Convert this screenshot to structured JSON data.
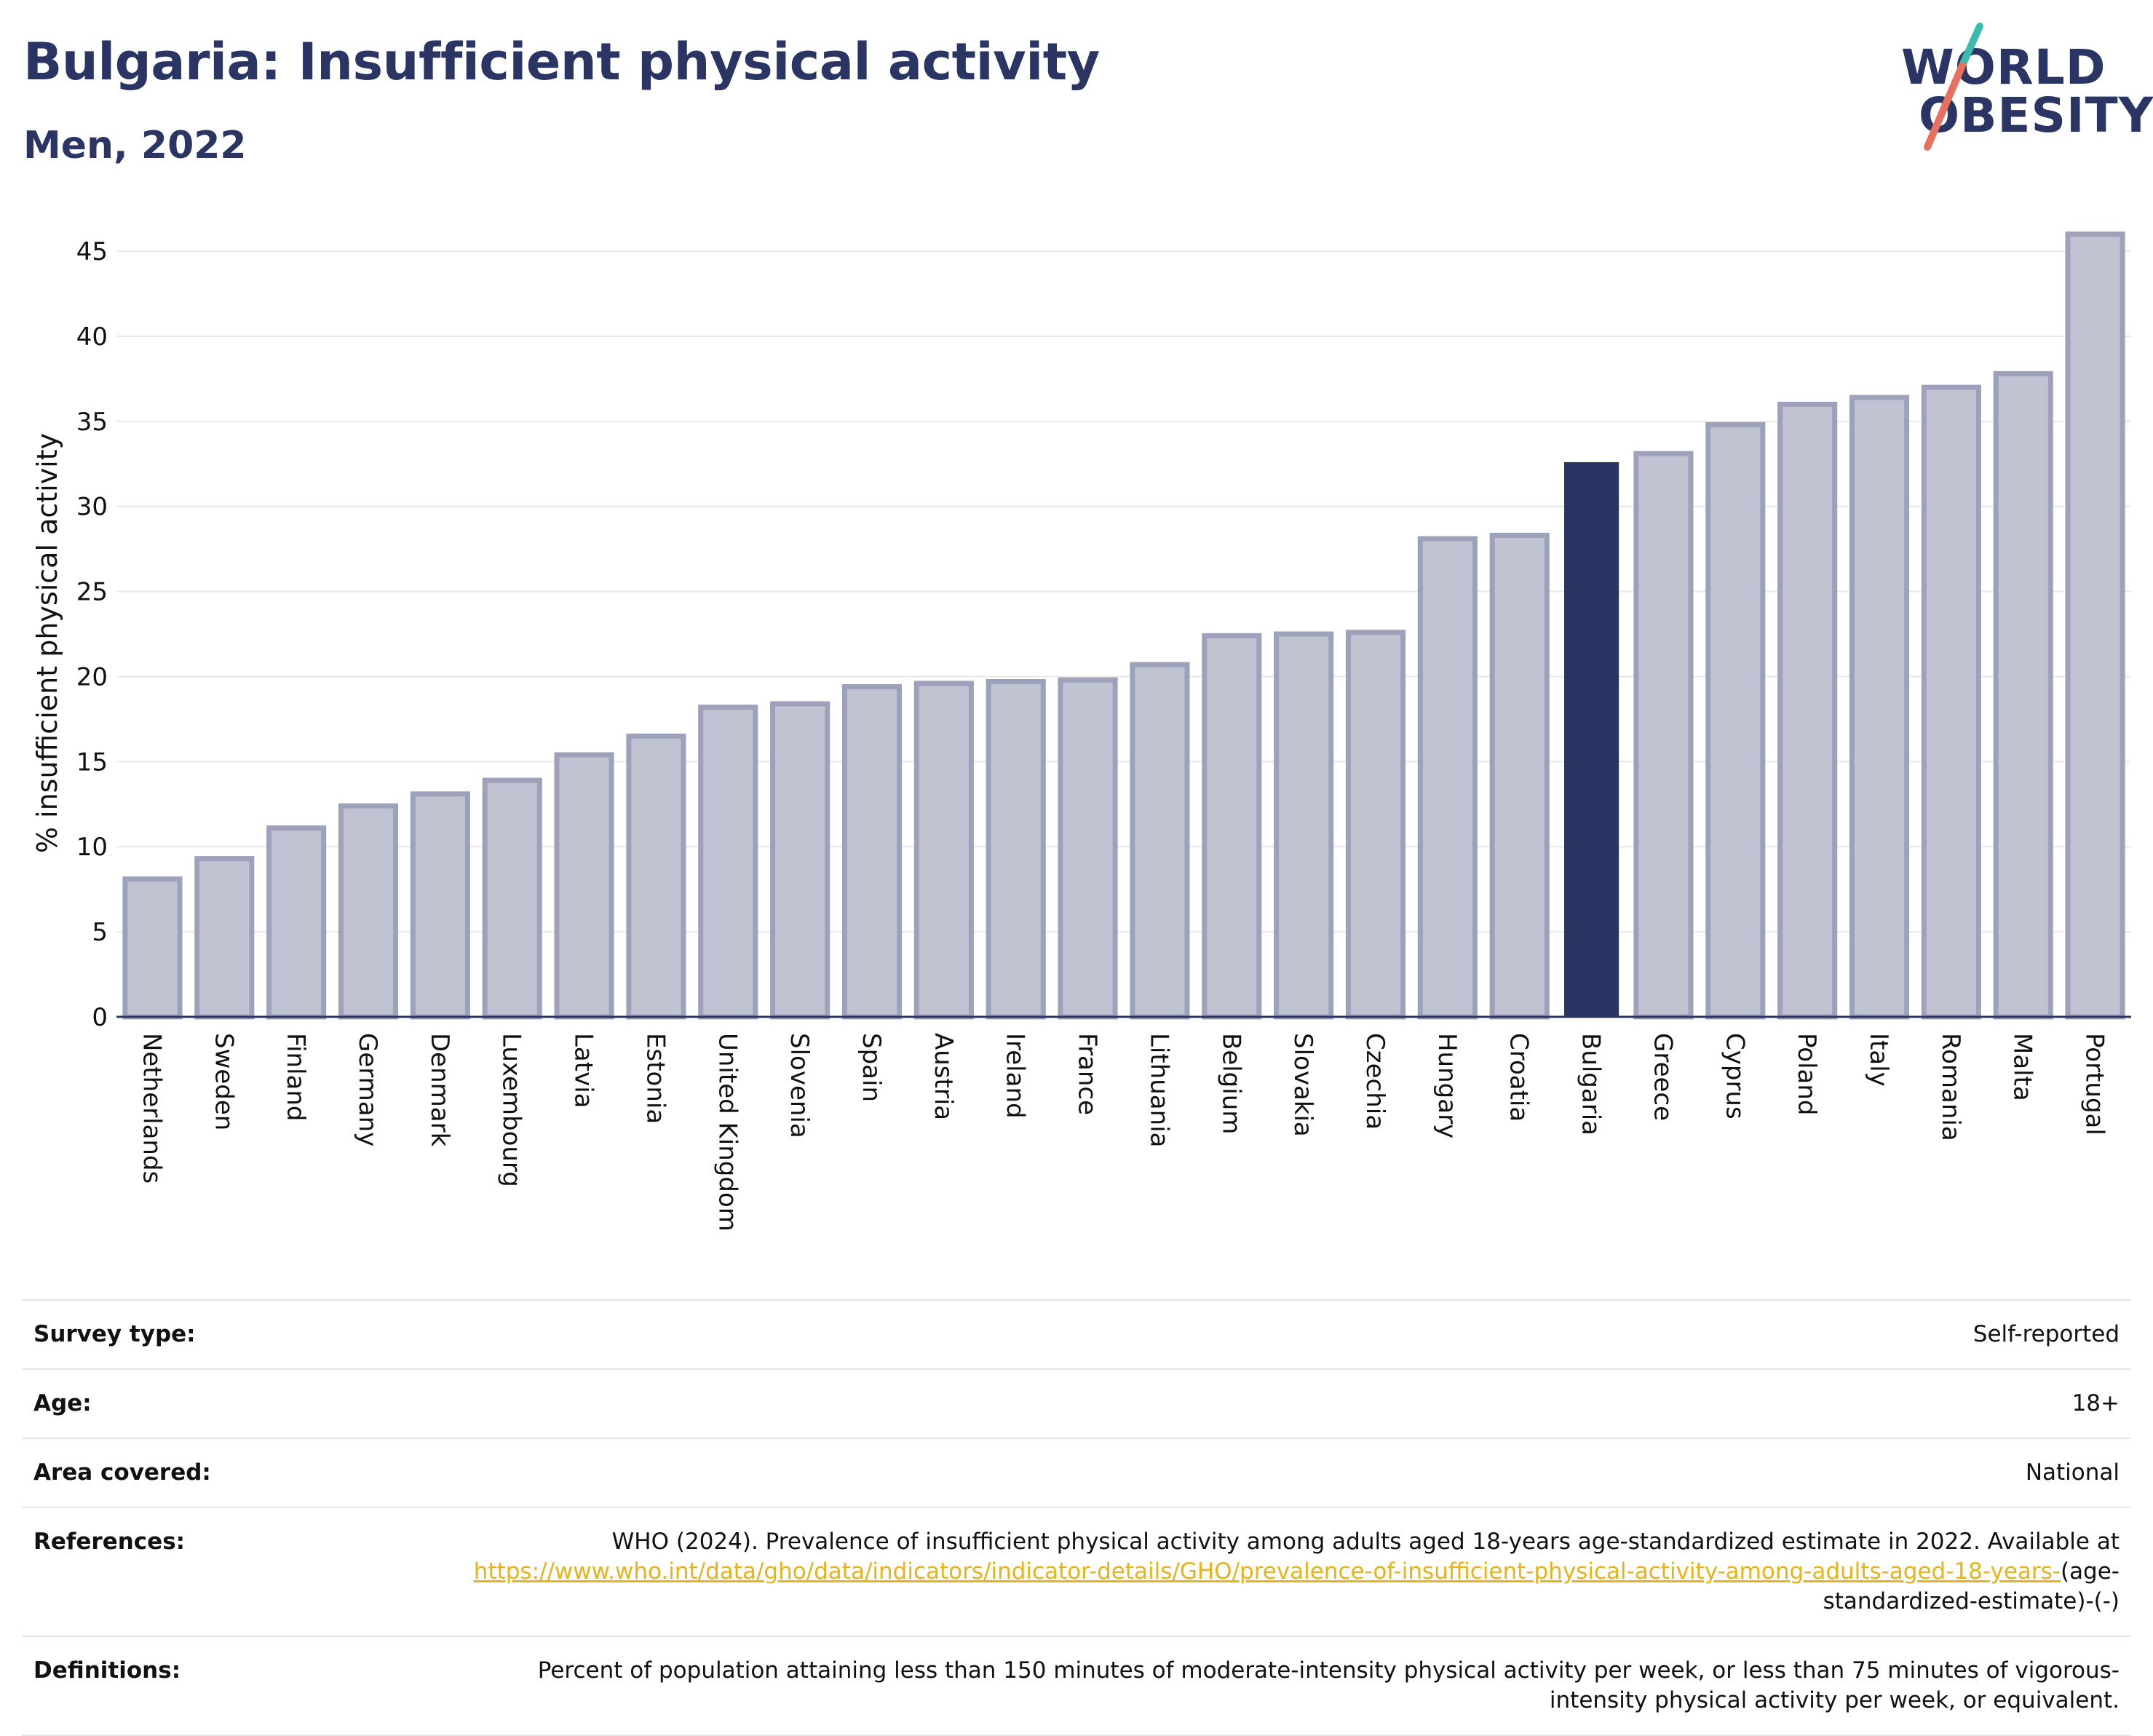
{
  "header": {
    "title": "Bulgaria: Insufficient physical activity",
    "subtitle": "Men, 2022"
  },
  "logo": {
    "line1": "WORLD",
    "line2": "OBESITY",
    "accent_teal": "#3dbab0",
    "accent_coral": "#e8705e"
  },
  "chart_data": {
    "type": "bar",
    "ylabel": "% insufficient physical activity",
    "xlabel": "",
    "ylim": [
      0,
      46.5
    ],
    "yticks": [
      0,
      5,
      10,
      15,
      20,
      25,
      30,
      35,
      40,
      45
    ],
    "grid": true,
    "highlight": "Bulgaria",
    "colors": {
      "bar": "#c0c3d1",
      "bar_border": "#9da2ba",
      "highlight": "#2b3563",
      "grid": "#e8e8e8",
      "axis": "#2b3563"
    },
    "categories": [
      "Netherlands",
      "Sweden",
      "Finland",
      "Germany",
      "Denmark",
      "Luxembourg",
      "Latvia",
      "Estonia",
      "United Kingdom",
      "Slovenia",
      "Spain",
      "Austria",
      "Ireland",
      "France",
      "Lithuania",
      "Belgium",
      "Slovakia",
      "Czechia",
      "Hungary",
      "Croatia",
      "Bulgaria",
      "Greece",
      "Cyprus",
      "Poland",
      "Italy",
      "Romania",
      "Malta",
      "Portugal"
    ],
    "values": [
      8.1,
      9.3,
      11.1,
      12.4,
      13.1,
      13.9,
      15.4,
      16.5,
      18.2,
      18.4,
      19.4,
      19.6,
      19.7,
      19.8,
      20.7,
      22.4,
      22.5,
      22.6,
      28.1,
      28.3,
      32.6,
      33.1,
      34.8,
      36.0,
      36.4,
      37.0,
      37.8,
      46.0
    ]
  },
  "info": {
    "rows": [
      {
        "label": "Survey type:",
        "value": "Self-reported"
      },
      {
        "label": "Age:",
        "value": "18+"
      },
      {
        "label": "Area covered:",
        "value": "National"
      }
    ],
    "references": {
      "label": "References:",
      "text": "WHO (2024). Prevalence of insufficient physical activity among adults aged 18-years age-standardized estimate in 2022. Available at",
      "link_text": "https://www.who.int/data/gho/data/indicators/indicator-details/GHO/prevalence-of-insufficient-physical-activity-among-adults-aged-18-years-",
      "suffix": "(age-standardized-estimate)-(-)"
    },
    "definitions": {
      "label": "Definitions:",
      "text": "Percent of population attaining less than 150 minutes of moderate-intensity physical activity per week, or less than 75 minutes of vigorous-intensity physical activity per week, or equivalent."
    }
  }
}
